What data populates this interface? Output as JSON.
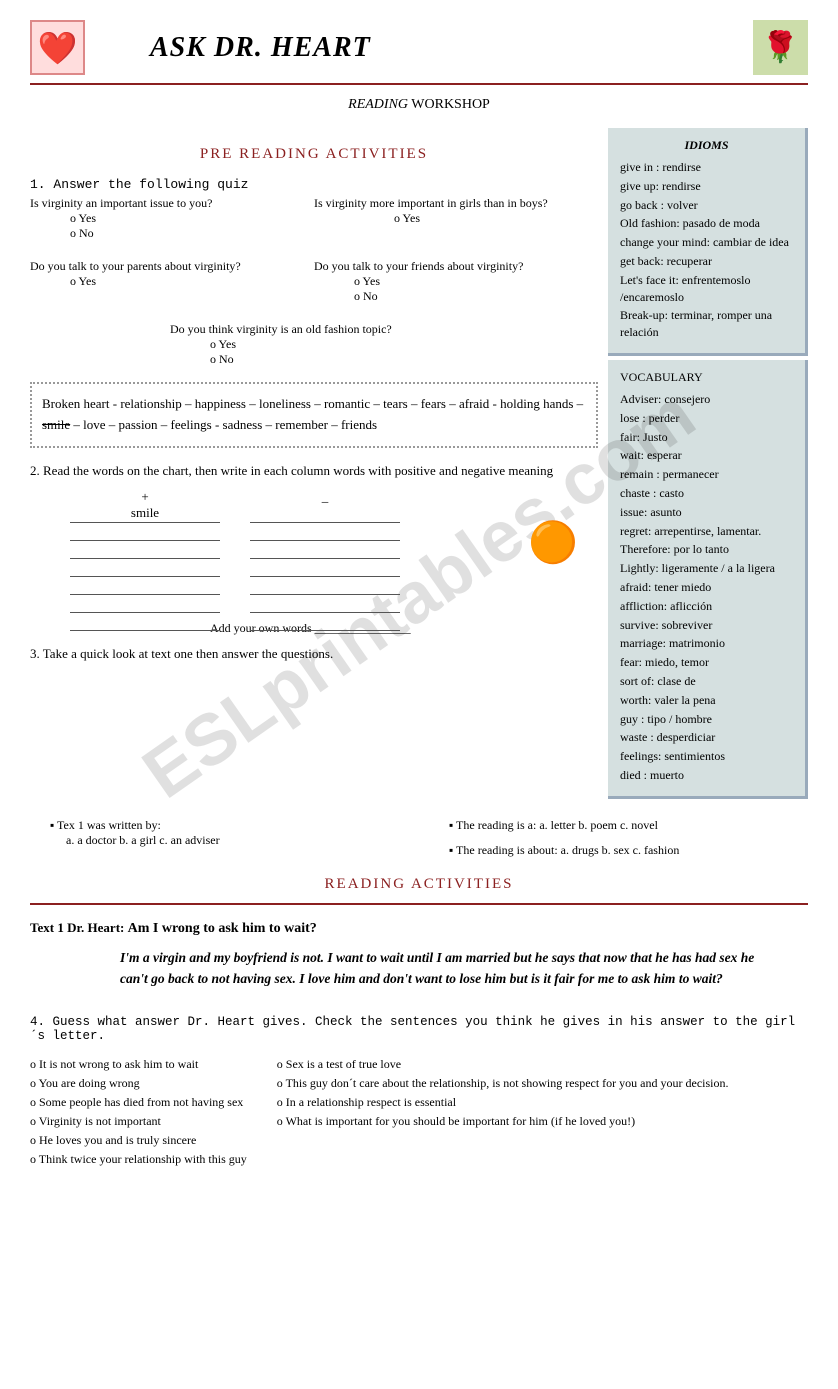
{
  "title": "ASK DR. HEART",
  "workshop": {
    "italic": "READING",
    "rest": " WORKSHOP"
  },
  "section1": "PRE READING ACTIVITIES",
  "section2": "READING ACTIVITIES",
  "q1": "1. Answer the following quiz",
  "quiz": {
    "a": "Is virginity an important issue to you?",
    "b": "Is virginity more important in girls than in boys?",
    "c": "Do you talk to your parents about virginity?",
    "d": "Do you talk to your friends about virginity?",
    "e": "Do you think virginity is an old fashion topic?",
    "yes": "o     Yes",
    "no": "o     No"
  },
  "words": "Broken heart  - relationship – happiness – loneliness – romantic – tears – fears – afraid -  holding hands – ",
  "words_strike": "smile",
  "words2": " – love – passion – feelings -  sadness – remember – friends",
  "q2": "2. Read the words on the chart, then write in each column words with positive and negative  meaning",
  "plus": "+",
  "minus": "_",
  "smile": "smile",
  "addown": "Add your own words ________________",
  "q3": "3. Take a quick look at text one then answer the questions.",
  "q3a_label": "▪   Tex 1 was written by:",
  "q3a_opts": "a. a doctor      b. a girl         c. an adviser",
  "q3b_label": "▪   The reading is a:   a. letter     b. poem     c. novel",
  "q3c_label": "▪   The reading is about:    a. drugs         b. sex       c. fashion",
  "text1_label": "Text 1     Dr. Heart:  ",
  "text1_title": "Am I wrong to ask him to wait?",
  "text1_body": "I'm a virgin and my boyfriend is not. I want to wait until I am married but he says that now that he has had sex he can't go back to not having sex. I love him and don't want to lose him but is it fair for me to ask him to wait?",
  "q4": "4. Guess what answer Dr. Heart gives. Check the sentences you think he gives in his  answer to the  girl´s letter.",
  "answers_left": [
    "It is not wrong to ask him to wait",
    "You are doing  wrong",
    "Some people  has died from not having sex",
    "Virginity is not important",
    "He loves you  and is truly sincere",
    "Think twice your relationship with this guy"
  ],
  "answers_right": [
    "Sex is a test of true love",
    "This guy don´t care about the relationship,  is not showing respect for you and your decision.",
    "In a relationship respect is essential",
    "What is important for you should be important for him (if he loved you!)"
  ],
  "idioms": {
    "title": "IDIOMS",
    "items": [
      "give in : rendirse",
      "give up: rendirse",
      "go back : volver",
      "Old fashion: pasado de moda",
      "change your mind: cambiar de idea",
      "get back: recuperar",
      " Let's face it: enfrentemoslo /encaremoslo",
      "Break-up: terminar,  romper una relación"
    ]
  },
  "vocab": {
    "title": "VOCABULARY",
    "items": [
      "Adviser: consejero",
      "lose : perder",
      "fair: Justo",
      " wait: esperar",
      " remain : permanecer",
      " chaste : casto",
      " issue: asunto",
      "regret: arrepentirse, lamentar.",
      "Therefore: por lo tanto",
      "Lightly: ligeramente / a la ligera",
      " afraid: tener miedo",
      " affliction: aflicción",
      " survive: sobreviver",
      "marriage: matrimonio",
      "fear: miedo, temor",
      "sort of: clase de",
      "worth: valer la pena",
      " guy : tipo / hombre",
      " waste : desperdiciar",
      "feelings: sentimientos",
      "died : muerto"
    ]
  },
  "watermark": "ESLprintables.com",
  "colors": {
    "accent": "#8b2020"
  }
}
